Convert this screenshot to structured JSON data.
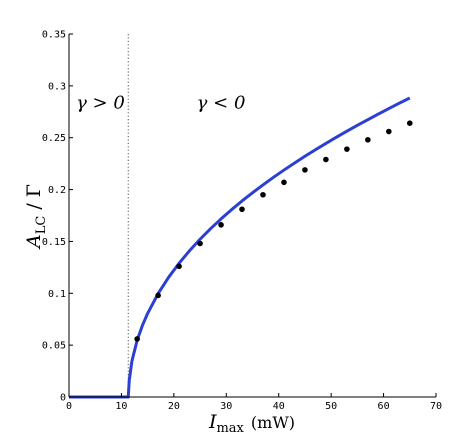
{
  "chart_data": {
    "type": "line",
    "title": "",
    "xlabel": {
      "main": "I",
      "sub": "max",
      "unit": "(mW)"
    },
    "ylabel": {
      "main": "A",
      "sub": "LC",
      "rest": " / Γ"
    },
    "xlim": [
      0,
      70
    ],
    "ylim": [
      0,
      0.35
    ],
    "x_ticks": [
      0,
      10,
      20,
      30,
      40,
      50,
      60,
      70
    ],
    "y_ticks": [
      0,
      0.05,
      0.1,
      0.15,
      0.2,
      0.25,
      0.3,
      0.35
    ],
    "x_tick_labels": [
      "0",
      "10",
      "20",
      "30",
      "40",
      "50",
      "60",
      "70"
    ],
    "y_tick_labels": [
      "0",
      "0.05",
      "0.1",
      "0.15",
      "0.2",
      "0.25",
      "0.3",
      "0.35"
    ],
    "grid": false,
    "threshold": 11.3,
    "annotations": [
      {
        "text": "γ > 0",
        "x": 6,
        "y": 0.278
      },
      {
        "text": "γ < 0",
        "x": 29,
        "y": 0.278
      }
    ],
    "series": [
      {
        "kind": "line",
        "color": "#2b3fd4",
        "x": [
          0,
          11.3,
          11.5,
          12,
          13,
          14,
          15,
          17,
          19,
          21,
          23,
          25,
          27,
          29,
          31,
          33,
          35,
          37,
          39,
          41,
          43,
          45,
          47,
          49,
          51,
          53,
          55,
          57,
          59,
          61,
          63,
          65
        ],
        "y": [
          0,
          0,
          0.0164,
          0.0346,
          0.0547,
          0.069,
          0.0806,
          0.0997,
          0.1154,
          0.129,
          0.1411,
          0.1521,
          0.1623,
          0.1717,
          0.1806,
          0.189,
          0.1969,
          0.2045,
          0.2118,
          0.2188,
          0.2255,
          0.2321,
          0.2384,
          0.2445,
          0.2505,
          0.2563,
          0.2619,
          0.2674,
          0.2728,
          0.2781,
          0.2833,
          0.2883
        ]
      },
      {
        "kind": "scatter",
        "color": "#000000",
        "x": [
          13,
          17,
          21,
          25,
          29,
          33,
          37,
          41,
          45,
          49,
          53,
          57,
          61,
          65
        ],
        "y": [
          0.056,
          0.098,
          0.126,
          0.148,
          0.166,
          0.181,
          0.195,
          0.207,
          0.219,
          0.229,
          0.239,
          0.248,
          0.256,
          0.264
        ]
      }
    ]
  }
}
